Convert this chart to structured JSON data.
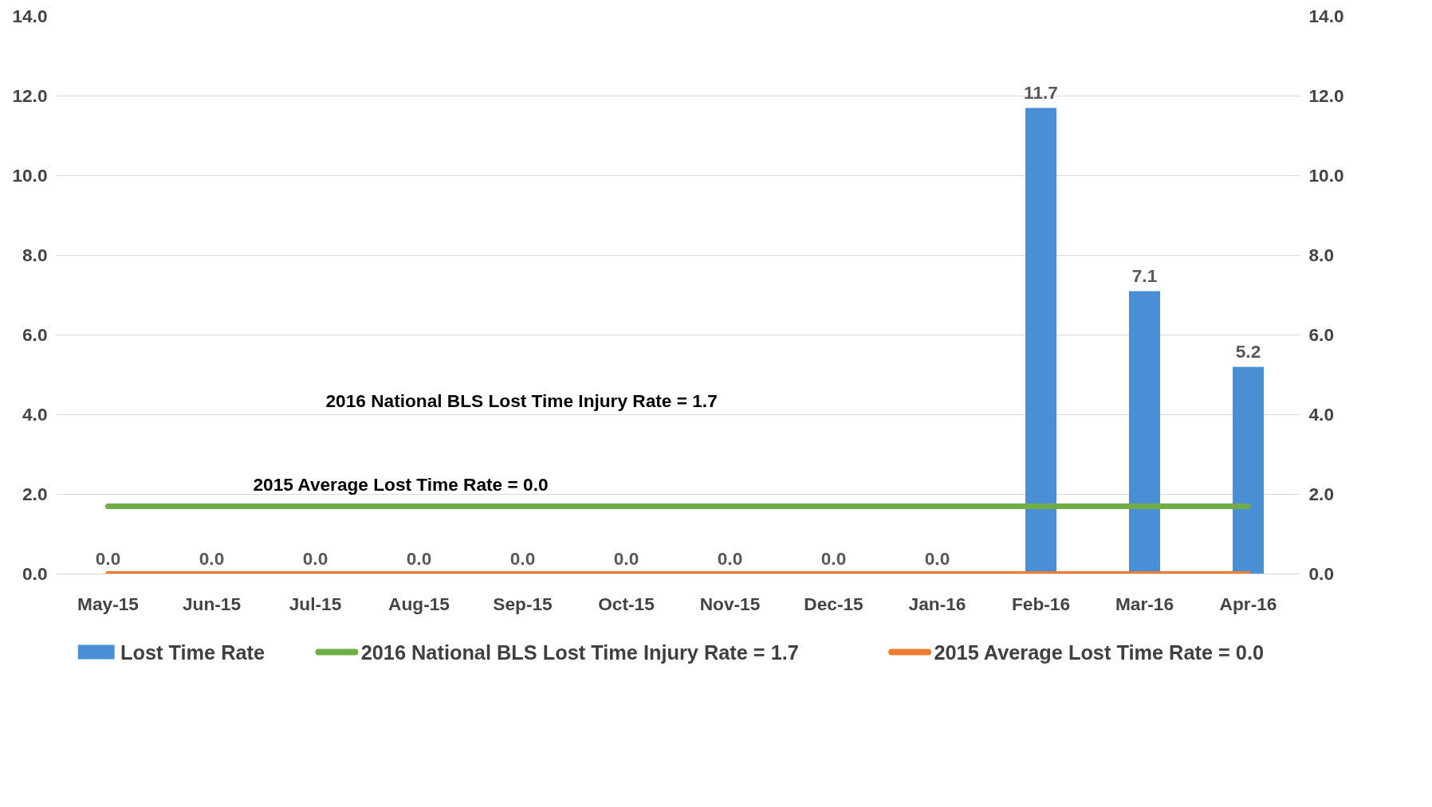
{
  "chart_data": {
    "type": "bar",
    "categories": [
      "May-15",
      "Jun-15",
      "Jul-15",
      "Aug-15",
      "Sep-15",
      "Oct-15",
      "Nov-15",
      "Dec-15",
      "Jan-16",
      "Feb-16",
      "Mar-16",
      "Apr-16"
    ],
    "series": [
      {
        "name": "Lost Time Rate",
        "color": "#4a8fd6",
        "values": [
          0.0,
          0.0,
          0.0,
          0.0,
          0.0,
          0.0,
          0.0,
          0.0,
          0.0,
          11.7,
          7.1,
          5.2
        ],
        "value_labels": [
          "0.0",
          "0.0",
          "0.0",
          "0.0",
          "0.0",
          "0.0",
          "0.0",
          "0.0",
          "0.0",
          "11.7",
          "7.1",
          "5.2"
        ]
      },
      {
        "name": "2016 National  BLS Lost Time Injury Rate = 1.7",
        "type": "line",
        "color": "#70ad47",
        "values": [
          1.7,
          1.7,
          1.7,
          1.7,
          1.7,
          1.7,
          1.7,
          1.7,
          1.7,
          1.7,
          1.7,
          1.7
        ]
      },
      {
        "name": "2015 Average Lost Time Rate = 0.0",
        "type": "line",
        "color": "#ed7d31",
        "values": [
          0.0,
          0.0,
          0.0,
          0.0,
          0.0,
          0.0,
          0.0,
          0.0,
          0.0,
          0.0,
          0.0,
          0.0
        ]
      }
    ],
    "ylim": [
      0,
      14
    ],
    "yticks": [
      {
        "value": 0,
        "label": "0.0"
      },
      {
        "value": 2,
        "label": "2.0"
      },
      {
        "value": 4,
        "label": "4.0"
      },
      {
        "value": 6,
        "label": "6.0"
      },
      {
        "value": 8,
        "label": "8.0"
      },
      {
        "value": 10,
        "label": "10.0"
      },
      {
        "value": 12,
        "label": "12.0"
      },
      {
        "value": 14,
        "label": "14.0"
      }
    ],
    "y2lim": [
      0,
      14
    ],
    "y2ticks": [
      {
        "value": 0,
        "label": "0.0"
      },
      {
        "value": 2,
        "label": "2.0"
      },
      {
        "value": 4,
        "label": "4.0"
      },
      {
        "value": 6,
        "label": "6.0"
      },
      {
        "value": 8,
        "label": "8.0"
      },
      {
        "value": 10,
        "label": "10.0"
      },
      {
        "value": 12,
        "label": "12.0"
      },
      {
        "value": 14,
        "label": "14.0"
      }
    ],
    "annotations": [
      "2016 National BLS Lost Time Injury Rate = 1.7",
      "2015 Average Lost Time Rate = 0.0"
    ],
    "grid": "y",
    "legend": "bottom"
  }
}
